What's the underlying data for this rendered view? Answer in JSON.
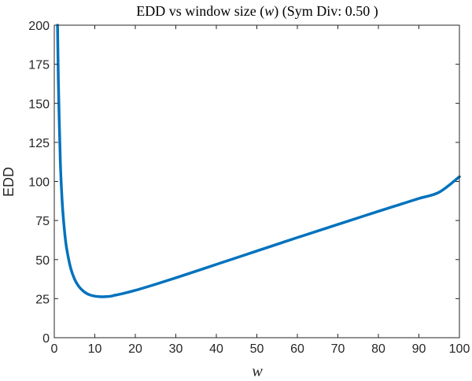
{
  "chart_data": {
    "type": "line",
    "title": {
      "prefix": "EDD vs window size (",
      "variable": "w",
      "suffix": ") (Sym Div: 0.50 )"
    },
    "xlabel": "w",
    "ylabel": "EDD",
    "xlim": [
      0,
      100
    ],
    "ylim": [
      0,
      200
    ],
    "xticks": [
      0,
      10,
      20,
      30,
      40,
      50,
      60,
      70,
      80,
      90,
      100
    ],
    "yticks": [
      0,
      25,
      50,
      75,
      100,
      125,
      150,
      175,
      200
    ],
    "grid": false,
    "series": [
      {
        "color": "#0072BD",
        "x": [
          0.8,
          1,
          1.5,
          2,
          2.5,
          3,
          4,
          5,
          6,
          7,
          8,
          9,
          10,
          11,
          12,
          13,
          14,
          15,
          17,
          20,
          25,
          30,
          35,
          40,
          45,
          50,
          55,
          60,
          65,
          70,
          75,
          80,
          85,
          90,
          95,
          100
        ],
        "y": [
          200,
          165,
          112,
          85,
          69,
          58,
          45,
          37.5,
          33,
          30.2,
          28.3,
          27.2,
          26.6,
          26.3,
          26.2,
          26.3,
          26.6,
          27.2,
          28.3,
          30.3,
          34.2,
          38.3,
          42.6,
          46.9,
          51.2,
          55.5,
          59.8,
          64.1,
          68.3,
          72.5,
          76.7,
          80.9,
          85.0,
          89.1,
          93.1,
          103
        ]
      }
    ]
  }
}
